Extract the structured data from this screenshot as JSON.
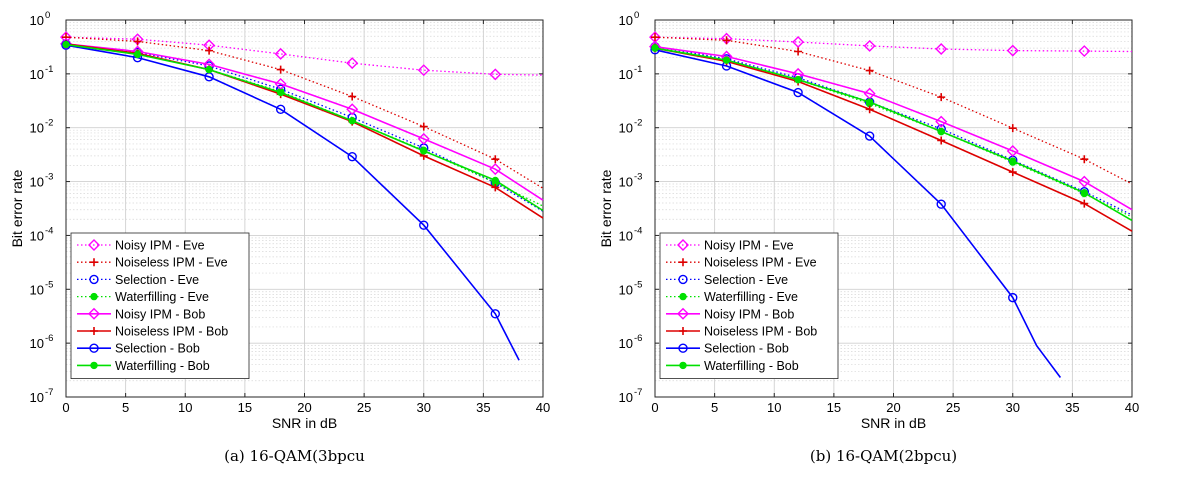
{
  "chart_data": [
    {
      "type": "line",
      "caption": "(a) 16-QAM(3bpcu",
      "xlabel": "SNR in dB",
      "ylabel": "Bit error rate",
      "xlim": [
        0,
        40
      ],
      "ylim": [
        1e-07,
        1
      ],
      "yscale": "log",
      "grid": true,
      "legend_position": "bottom-left",
      "xticks": [
        "0",
        "5",
        "10",
        "15",
        "20",
        "25",
        "30",
        "35",
        "40"
      ],
      "yticks": [
        {
          "base": "10",
          "exp": "0"
        },
        {
          "base": "10",
          "exp": "-1"
        },
        {
          "base": "10",
          "exp": "-2"
        },
        {
          "base": "10",
          "exp": "-3"
        },
        {
          "base": "10",
          "exp": "-4"
        },
        {
          "base": "10",
          "exp": "-5"
        },
        {
          "base": "10",
          "exp": "-6"
        },
        {
          "base": "10",
          "exp": "-7"
        }
      ],
      "series": [
        {
          "name": "Noisy IPM - Eve",
          "color": "#ff00ff",
          "dash": "dotted",
          "marker": "diamond",
          "x": [
            0,
            6,
            12,
            18,
            24,
            30,
            36,
            40
          ],
          "y": [
            0.48,
            0.44,
            0.34,
            0.235,
            0.158,
            0.117,
            0.098,
            0.095
          ]
        },
        {
          "name": "Noiseless IPM - Eve",
          "color": "#dd0000",
          "dash": "dotted",
          "marker": "plus",
          "x": [
            0,
            6,
            12,
            18,
            24,
            30,
            36,
            40
          ],
          "y": [
            0.48,
            0.4,
            0.27,
            0.12,
            0.038,
            0.0105,
            0.0026,
            0.00075
          ]
        },
        {
          "name": "Selection - Eve",
          "color": "#0000ff",
          "dash": "dotted",
          "marker": "circle",
          "x": [
            0,
            6,
            12,
            18,
            24,
            30,
            36,
            40
          ],
          "y": [
            0.36,
            0.25,
            0.14,
            0.052,
            0.0155,
            0.0042,
            0.00095,
            0.00028
          ]
        },
        {
          "name": "Waterfilling - Eve",
          "color": "#00e000",
          "dash": "dotted",
          "marker": "dot",
          "x": [
            0,
            6,
            12,
            18,
            24,
            30,
            36,
            40
          ],
          "y": [
            0.36,
            0.24,
            0.12,
            0.047,
            0.0135,
            0.0038,
            0.00095,
            0.00035
          ]
        },
        {
          "name": "Noisy IPM - Bob",
          "color": "#ff00ff",
          "dash": "solid",
          "marker": "diamond",
          "x": [
            0,
            6,
            12,
            18,
            24,
            30,
            36,
            40
          ],
          "y": [
            0.36,
            0.26,
            0.15,
            0.065,
            0.022,
            0.0062,
            0.0017,
            0.00045
          ]
        },
        {
          "name": "Noiseless IPM - Bob",
          "color": "#dd0000",
          "dash": "solid",
          "marker": "plus",
          "x": [
            0,
            6,
            12,
            18,
            24,
            30,
            36,
            40
          ],
          "y": [
            0.36,
            0.24,
            0.12,
            0.042,
            0.013,
            0.003,
            0.00078,
            0.00021
          ]
        },
        {
          "name": "Selection - Bob",
          "color": "#0000ff",
          "dash": "solid",
          "marker": "circle",
          "x": [
            0,
            6,
            12,
            18,
            24,
            30,
            36,
            38
          ],
          "y": [
            0.34,
            0.2,
            0.088,
            0.022,
            0.0029,
            0.000155,
            3.5e-06,
            4.8e-07
          ]
        },
        {
          "name": "Waterfilling - Bob",
          "color": "#00e000",
          "dash": "solid",
          "marker": "dot",
          "x": [
            0,
            6,
            12,
            18,
            24,
            30,
            36,
            40
          ],
          "y": [
            0.35,
            0.23,
            0.12,
            0.045,
            0.0135,
            0.0037,
            0.00105,
            0.00029
          ]
        }
      ]
    },
    {
      "type": "line",
      "caption": "(b) 16-QAM(2bpcu)",
      "xlabel": "SNR in dB",
      "ylabel": "Bit error rate",
      "xlim": [
        0,
        40
      ],
      "ylim": [
        1e-07,
        1
      ],
      "yscale": "log",
      "grid": true,
      "legend_position": "bottom-left",
      "xticks": [
        "0",
        "5",
        "10",
        "15",
        "20",
        "25",
        "30",
        "35",
        "40"
      ],
      "yticks": [
        {
          "base": "10",
          "exp": "0"
        },
        {
          "base": "10",
          "exp": "-1"
        },
        {
          "base": "10",
          "exp": "-2"
        },
        {
          "base": "10",
          "exp": "-3"
        },
        {
          "base": "10",
          "exp": "-4"
        },
        {
          "base": "10",
          "exp": "-5"
        },
        {
          "base": "10",
          "exp": "-6"
        },
        {
          "base": "10",
          "exp": "-7"
        }
      ],
      "series": [
        {
          "name": "Noisy IPM - Eve",
          "color": "#ff00ff",
          "dash": "dotted",
          "marker": "diamond",
          "x": [
            0,
            6,
            12,
            18,
            24,
            30,
            36,
            40
          ],
          "y": [
            0.48,
            0.45,
            0.39,
            0.33,
            0.29,
            0.27,
            0.265,
            0.26
          ]
        },
        {
          "name": "Noiseless IPM - Eve",
          "color": "#dd0000",
          "dash": "dotted",
          "marker": "plus",
          "x": [
            0,
            6,
            12,
            18,
            24,
            30,
            36,
            40
          ],
          "y": [
            0.48,
            0.42,
            0.26,
            0.115,
            0.037,
            0.0098,
            0.0026,
            0.0009
          ]
        },
        {
          "name": "Selection - Eve",
          "color": "#0000ff",
          "dash": "dotted",
          "marker": "circle",
          "x": [
            0,
            6,
            12,
            18,
            24,
            30,
            36,
            40
          ],
          "y": [
            0.32,
            0.19,
            0.085,
            0.03,
            0.0095,
            0.0025,
            0.00065,
            0.00024
          ]
        },
        {
          "name": "Waterfilling - Eve",
          "color": "#00e000",
          "dash": "dotted",
          "marker": "dot",
          "x": [
            0,
            6,
            12,
            18,
            24,
            30,
            36,
            40
          ],
          "y": [
            0.31,
            0.18,
            0.078,
            0.028,
            0.0085,
            0.0023,
            0.0006,
            0.00022
          ]
        },
        {
          "name": "Noisy IPM - Bob",
          "color": "#ff00ff",
          "dash": "solid",
          "marker": "diamond",
          "x": [
            0,
            6,
            12,
            18,
            24,
            30,
            36,
            40
          ],
          "y": [
            0.32,
            0.21,
            0.1,
            0.043,
            0.013,
            0.0037,
            0.001,
            0.0003
          ]
        },
        {
          "name": "Noiseless IPM - Bob",
          "color": "#dd0000",
          "dash": "solid",
          "marker": "plus",
          "x": [
            0,
            6,
            12,
            18,
            24,
            30,
            36,
            40
          ],
          "y": [
            0.3,
            0.17,
            0.072,
            0.022,
            0.0058,
            0.0015,
            0.00039,
            0.00012
          ]
        },
        {
          "name": "Selection - Bob",
          "color": "#0000ff",
          "dash": "solid",
          "marker": "circle",
          "x": [
            0,
            6,
            12,
            18,
            24,
            30,
            32,
            34
          ],
          "y": [
            0.28,
            0.14,
            0.045,
            0.007,
            0.00038,
            7e-06,
            9e-07,
            2.3e-07
          ]
        },
        {
          "name": "Waterfilling - Bob",
          "color": "#00e000",
          "dash": "solid",
          "marker": "dot",
          "x": [
            0,
            6,
            12,
            18,
            24,
            30,
            36,
            40
          ],
          "y": [
            0.3,
            0.18,
            0.078,
            0.03,
            0.0085,
            0.0024,
            0.00062,
            0.00019
          ]
        }
      ]
    }
  ]
}
